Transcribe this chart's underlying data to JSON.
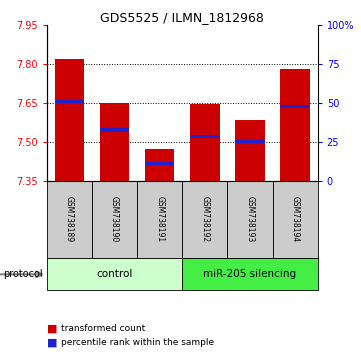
{
  "title": "GDS5525 / ILMN_1812968",
  "samples": [
    "GSM738189",
    "GSM738190",
    "GSM738191",
    "GSM738192",
    "GSM738193",
    "GSM738194"
  ],
  "transformed_counts": [
    7.82,
    7.65,
    7.47,
    7.645,
    7.585,
    7.78
  ],
  "percentile_ranks": [
    7.655,
    7.545,
    7.415,
    7.52,
    7.5,
    7.635
  ],
  "ymin": 7.35,
  "ymax": 7.95,
  "bar_color": "#cc0000",
  "percentile_color": "#2222cc",
  "bar_bottom": 7.35,
  "groups": [
    {
      "label": "control",
      "indices": [
        0,
        1,
        2
      ],
      "color": "#ccffcc"
    },
    {
      "label": "miR-205 silencing",
      "indices": [
        3,
        4,
        5
      ],
      "color": "#44ee44"
    }
  ],
  "right_ytick_labels": [
    "100%",
    "75",
    "50",
    "25",
    "0"
  ],
  "right_ytick_positions": [
    7.95,
    7.8,
    7.65,
    7.5,
    7.35
  ],
  "left_yticks": [
    7.35,
    7.5,
    7.65,
    7.8,
    7.95
  ],
  "dotted_lines": [
    7.5,
    7.65,
    7.8
  ],
  "legend_items": [
    {
      "color": "#cc0000",
      "label": "transformed count"
    },
    {
      "color": "#2222cc",
      "label": "percentile rank within the sample"
    }
  ],
  "protocol_label": "protocol",
  "bar_width": 0.65,
  "sample_box_color": "#cccccc",
  "title_fontsize": 9,
  "tick_fontsize": 7,
  "sample_fontsize": 5.5,
  "group_fontsize": 7.5
}
